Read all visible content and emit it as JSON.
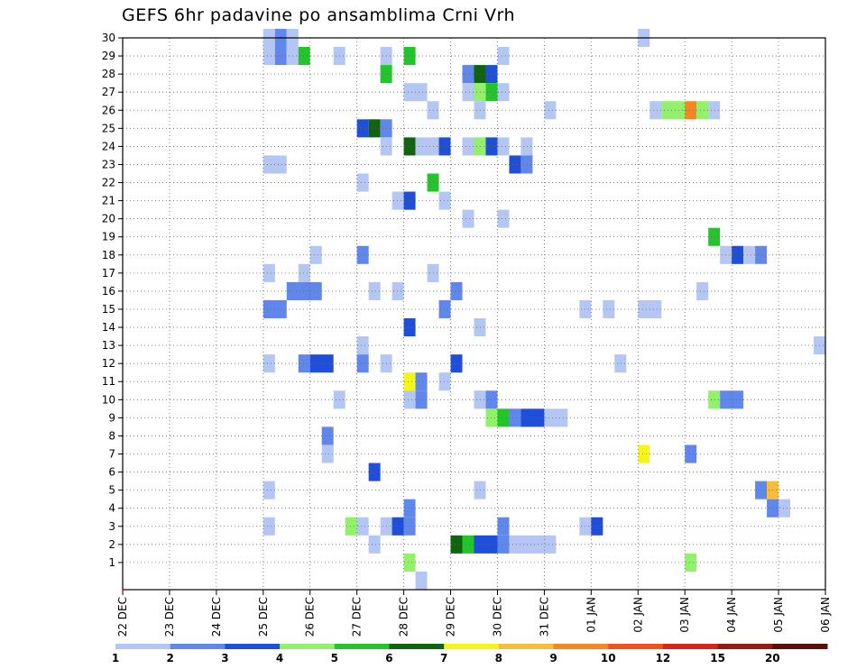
{
  "chart_data": {
    "type": "heatmap",
    "title": "GEFS 6hr padavine po ansamblima Crni Vrh",
    "y_ticks": [
      "1",
      "2",
      "3",
      "4",
      "5",
      "6",
      "7",
      "8",
      "9",
      "10",
      "11",
      "12",
      "13",
      "14",
      "15",
      "16",
      "17",
      "18",
      "19",
      "20",
      "21",
      "22",
      "23",
      "24",
      "25",
      "26",
      "27",
      "28",
      "29",
      "30"
    ],
    "x_ticks": [
      "22 DEC",
      "23 DEC",
      "24 DEC",
      "25 DEC",
      "26 DEC",
      "27 DEC",
      "28 DEC",
      "29 DEC",
      "30 DEC",
      "31 DEC",
      "01 JAN",
      "02 JAN",
      "03 JAN",
      "04 JAN",
      "05 JAN",
      "06 JAN"
    ],
    "x_step": "6 hours",
    "grid": true,
    "colorbar": {
      "labels": [
        "1",
        "2",
        "3",
        "4",
        "5",
        "6",
        "7",
        "8",
        "9",
        "10",
        "12",
        "15",
        "20"
      ],
      "colors": [
        "#b4c6f3",
        "#5f87ec",
        "#1f4fd8",
        "#91f168",
        "#22c52a",
        "#10640f",
        "#f5f51a",
        "#f8bb3a",
        "#f5871e",
        "#f0541a",
        "#d7261a",
        "#981a12",
        "#5a0f0a"
      ]
    },
    "cells": [
      {
        "member": 30,
        "start": 12,
        "end": 12,
        "level": 1
      },
      {
        "member": 30,
        "start": 13,
        "end": 13,
        "level": 2
      },
      {
        "member": 30,
        "start": 14,
        "end": 14,
        "level": 1
      },
      {
        "member": 30,
        "start": 44,
        "end": 44,
        "level": 1
      },
      {
        "member": 29,
        "start": 12,
        "end": 12,
        "level": 1
      },
      {
        "member": 29,
        "start": 13,
        "end": 13,
        "level": 2
      },
      {
        "member": 29,
        "start": 14,
        "end": 14,
        "level": 1
      },
      {
        "member": 29,
        "start": 15,
        "end": 15,
        "level": 5
      },
      {
        "member": 29,
        "start": 18,
        "end": 18,
        "level": 1
      },
      {
        "member": 29,
        "start": 22,
        "end": 22,
        "level": 1
      },
      {
        "member": 29,
        "start": 24,
        "end": 24,
        "level": 5
      },
      {
        "member": 29,
        "start": 32,
        "end": 32,
        "level": 1
      },
      {
        "member": 28,
        "start": 22,
        "end": 22,
        "level": 5
      },
      {
        "member": 28,
        "start": 29,
        "end": 29,
        "level": 2
      },
      {
        "member": 28,
        "start": 30,
        "end": 30,
        "level": 6
      },
      {
        "member": 28,
        "start": 31,
        "end": 31,
        "level": 3
      },
      {
        "member": 27,
        "start": 24,
        "end": 25,
        "level": 1
      },
      {
        "member": 27,
        "start": 29,
        "end": 29,
        "level": 1
      },
      {
        "member": 27,
        "start": 30,
        "end": 30,
        "level": 4
      },
      {
        "member": 27,
        "start": 31,
        "end": 31,
        "level": 5
      },
      {
        "member": 27,
        "start": 32,
        "end": 32,
        "level": 1
      },
      {
        "member": 26,
        "start": 26,
        "end": 26,
        "level": 1
      },
      {
        "member": 26,
        "start": 30,
        "end": 30,
        "level": 1
      },
      {
        "member": 26,
        "start": 36,
        "end": 36,
        "level": 1
      },
      {
        "member": 26,
        "start": 45,
        "end": 45,
        "level": 1
      },
      {
        "member": 26,
        "start": 46,
        "end": 47,
        "level": 4
      },
      {
        "member": 26,
        "start": 48,
        "end": 48,
        "level": 9
      },
      {
        "member": 26,
        "start": 49,
        "end": 49,
        "level": 4
      },
      {
        "member": 26,
        "start": 50,
        "end": 50,
        "level": 1
      },
      {
        "member": 25,
        "start": 20,
        "end": 20,
        "level": 3
      },
      {
        "member": 25,
        "start": 21,
        "end": 21,
        "level": 6
      },
      {
        "member": 25,
        "start": 22,
        "end": 22,
        "level": 2
      },
      {
        "member": 24,
        "start": 22,
        "end": 22,
        "level": 1
      },
      {
        "member": 24,
        "start": 24,
        "end": 24,
        "level": 6
      },
      {
        "member": 24,
        "start": 25,
        "end": 26,
        "level": 1
      },
      {
        "member": 24,
        "start": 27,
        "end": 27,
        "level": 3
      },
      {
        "member": 24,
        "start": 29,
        "end": 29,
        "level": 1
      },
      {
        "member": 24,
        "start": 30,
        "end": 30,
        "level": 4
      },
      {
        "member": 24,
        "start": 31,
        "end": 31,
        "level": 3
      },
      {
        "member": 24,
        "start": 32,
        "end": 32,
        "level": 1
      },
      {
        "member": 24,
        "start": 34,
        "end": 34,
        "level": 1
      },
      {
        "member": 23,
        "start": 12,
        "end": 13,
        "level": 1
      },
      {
        "member": 23,
        "start": 33,
        "end": 33,
        "level": 3
      },
      {
        "member": 23,
        "start": 34,
        "end": 34,
        "level": 2
      },
      {
        "member": 22,
        "start": 20,
        "end": 20,
        "level": 1
      },
      {
        "member": 22,
        "start": 26,
        "end": 26,
        "level": 5
      },
      {
        "member": 21,
        "start": 23,
        "end": 23,
        "level": 1
      },
      {
        "member": 21,
        "start": 24,
        "end": 24,
        "level": 3
      },
      {
        "member": 21,
        "start": 27,
        "end": 27,
        "level": 1
      },
      {
        "member": 20,
        "start": 29,
        "end": 29,
        "level": 1
      },
      {
        "member": 20,
        "start": 32,
        "end": 32,
        "level": 1
      },
      {
        "member": 19,
        "start": 50,
        "end": 50,
        "level": 5
      },
      {
        "member": 18,
        "start": 16,
        "end": 16,
        "level": 1
      },
      {
        "member": 18,
        "start": 20,
        "end": 20,
        "level": 2
      },
      {
        "member": 18,
        "start": 51,
        "end": 51,
        "level": 1
      },
      {
        "member": 18,
        "start": 52,
        "end": 52,
        "level": 3
      },
      {
        "member": 18,
        "start": 53,
        "end": 53,
        "level": 1
      },
      {
        "member": 18,
        "start": 54,
        "end": 54,
        "level": 2
      },
      {
        "member": 17,
        "start": 12,
        "end": 12,
        "level": 1
      },
      {
        "member": 17,
        "start": 15,
        "end": 15,
        "level": 1
      },
      {
        "member": 17,
        "start": 26,
        "end": 26,
        "level": 1
      },
      {
        "member": 16,
        "start": 14,
        "end": 16,
        "level": 2
      },
      {
        "member": 16,
        "start": 21,
        "end": 21,
        "level": 1
      },
      {
        "member": 16,
        "start": 23,
        "end": 23,
        "level": 1
      },
      {
        "member": 16,
        "start": 28,
        "end": 28,
        "level": 2
      },
      {
        "member": 16,
        "start": 49,
        "end": 49,
        "level": 1
      },
      {
        "member": 15,
        "start": 12,
        "end": 13,
        "level": 2
      },
      {
        "member": 15,
        "start": 27,
        "end": 27,
        "level": 2
      },
      {
        "member": 15,
        "start": 39,
        "end": 39,
        "level": 1
      },
      {
        "member": 15,
        "start": 41,
        "end": 41,
        "level": 1
      },
      {
        "member": 15,
        "start": 44,
        "end": 45,
        "level": 1
      },
      {
        "member": 14,
        "start": 24,
        "end": 24,
        "level": 3
      },
      {
        "member": 14,
        "start": 30,
        "end": 30,
        "level": 1
      },
      {
        "member": 13,
        "start": 20,
        "end": 20,
        "level": 1
      },
      {
        "member": 13,
        "start": 59,
        "end": 59,
        "level": 1
      },
      {
        "member": 12,
        "start": 12,
        "end": 12,
        "level": 1
      },
      {
        "member": 12,
        "start": 15,
        "end": 15,
        "level": 2
      },
      {
        "member": 12,
        "start": 16,
        "end": 17,
        "level": 3
      },
      {
        "member": 12,
        "start": 20,
        "end": 20,
        "level": 2
      },
      {
        "member": 12,
        "start": 22,
        "end": 22,
        "level": 1
      },
      {
        "member": 12,
        "start": 28,
        "end": 28,
        "level": 3
      },
      {
        "member": 12,
        "start": 42,
        "end": 42,
        "level": 1
      },
      {
        "member": 11,
        "start": 24,
        "end": 24,
        "level": 7
      },
      {
        "member": 11,
        "start": 25,
        "end": 25,
        "level": 2
      },
      {
        "member": 11,
        "start": 27,
        "end": 27,
        "level": 1
      },
      {
        "member": 10,
        "start": 18,
        "end": 18,
        "level": 1
      },
      {
        "member": 10,
        "start": 24,
        "end": 24,
        "level": 1
      },
      {
        "member": 10,
        "start": 25,
        "end": 25,
        "level": 2
      },
      {
        "member": 10,
        "start": 30,
        "end": 30,
        "level": 1
      },
      {
        "member": 10,
        "start": 31,
        "end": 31,
        "level": 2
      },
      {
        "member": 10,
        "start": 50,
        "end": 50,
        "level": 4
      },
      {
        "member": 10,
        "start": 51,
        "end": 52,
        "level": 2
      },
      {
        "member": 9,
        "start": 31,
        "end": 31,
        "level": 4
      },
      {
        "member": 9,
        "start": 32,
        "end": 32,
        "level": 5
      },
      {
        "member": 9,
        "start": 33,
        "end": 33,
        "level": 2
      },
      {
        "member": 9,
        "start": 34,
        "end": 35,
        "level": 3
      },
      {
        "member": 9,
        "start": 36,
        "end": 37,
        "level": 1
      },
      {
        "member": 8,
        "start": 17,
        "end": 17,
        "level": 2
      },
      {
        "member": 7,
        "start": 17,
        "end": 17,
        "level": 1
      },
      {
        "member": 7,
        "start": 44,
        "end": 44,
        "level": 7
      },
      {
        "member": 7,
        "start": 48,
        "end": 48,
        "level": 2
      },
      {
        "member": 6,
        "start": 21,
        "end": 21,
        "level": 3
      },
      {
        "member": 5,
        "start": 12,
        "end": 12,
        "level": 1
      },
      {
        "member": 5,
        "start": 30,
        "end": 30,
        "level": 1
      },
      {
        "member": 5,
        "start": 54,
        "end": 54,
        "level": 2
      },
      {
        "member": 5,
        "start": 55,
        "end": 55,
        "level": 8
      },
      {
        "member": 4,
        "start": 24,
        "end": 24,
        "level": 2
      },
      {
        "member": 4,
        "start": 55,
        "end": 55,
        "level": 2
      },
      {
        "member": 4,
        "start": 56,
        "end": 56,
        "level": 1
      },
      {
        "member": 3,
        "start": 12,
        "end": 12,
        "level": 1
      },
      {
        "member": 3,
        "start": 19,
        "end": 19,
        "level": 4
      },
      {
        "member": 3,
        "start": 20,
        "end": 20,
        "level": 1
      },
      {
        "member": 3,
        "start": 22,
        "end": 23,
        "level": 1
      },
      {
        "member": 3,
        "start": 23,
        "end": 23,
        "level": 3
      },
      {
        "member": 3,
        "start": 24,
        "end": 24,
        "level": 2
      },
      {
        "member": 3,
        "start": 32,
        "end": 32,
        "level": 2
      },
      {
        "member": 3,
        "start": 39,
        "end": 39,
        "level": 1
      },
      {
        "member": 3,
        "start": 40,
        "end": 40,
        "level": 3
      },
      {
        "member": 2,
        "start": 21,
        "end": 21,
        "level": 1
      },
      {
        "member": 2,
        "start": 28,
        "end": 28,
        "level": 6
      },
      {
        "member": 2,
        "start": 29,
        "end": 29,
        "level": 5
      },
      {
        "member": 2,
        "start": 30,
        "end": 31,
        "level": 3
      },
      {
        "member": 2,
        "start": 32,
        "end": 32,
        "level": 2
      },
      {
        "member": 2,
        "start": 33,
        "end": 36,
        "level": 1
      },
      {
        "member": 1,
        "start": 24,
        "end": 24,
        "level": 4
      },
      {
        "member": 1,
        "start": 48,
        "end": 48,
        "level": 4
      },
      {
        "member": 0,
        "start": 25,
        "end": 25,
        "level": 1
      }
    ]
  }
}
